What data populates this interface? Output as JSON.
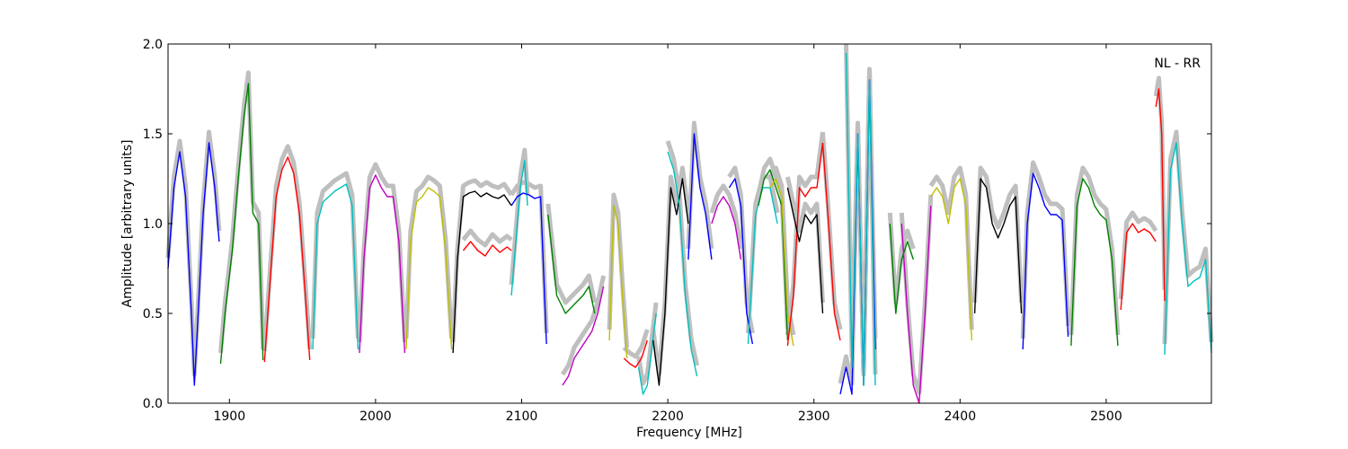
{
  "chart_data": {
    "type": "line",
    "title": "",
    "xlabel": "Frequency [MHz]",
    "ylabel": "Amplitude [arbitrary units]",
    "annotation": "NL - RR",
    "xlim": [
      1858,
      2572
    ],
    "ylim": [
      0.0,
      2.0
    ],
    "x_ticks": [
      1900,
      2000,
      2100,
      2200,
      2300,
      2400,
      2500
    ],
    "x_tick_labels": [
      "1900",
      "2000",
      "2100",
      "2200",
      "2300",
      "2400",
      "2500"
    ],
    "y_ticks": [
      0.0,
      0.5,
      1.0,
      1.5,
      2.0
    ],
    "y_tick_labels": [
      "0.0",
      "0.5",
      "1.0",
      "1.5",
      "2.0"
    ],
    "grid": false,
    "reference_color": "#bfbfbf",
    "segments": [
      {
        "color": "#0000ff",
        "x": [
          1858,
          1862,
          1866,
          1870,
          1874,
          1876,
          1878,
          1882,
          1886,
          1890,
          1893
        ],
        "y": [
          0.75,
          1.2,
          1.4,
          1.15,
          0.5,
          0.1,
          0.4,
          1.05,
          1.45,
          1.2,
          0.9
        ]
      },
      {
        "color": "#008000",
        "x": [
          1894,
          1897,
          1902,
          1906,
          1910,
          1913,
          1916,
          1920,
          1922,
          1923
        ],
        "y": [
          0.22,
          0.5,
          0.85,
          1.25,
          1.6,
          1.78,
          1.06,
          1.0,
          0.5,
          0.24
        ]
      },
      {
        "color": "#ff0000",
        "x": [
          1924,
          1928,
          1932,
          1936,
          1940,
          1944,
          1948,
          1952,
          1955
        ],
        "y": [
          0.23,
          0.7,
          1.15,
          1.3,
          1.37,
          1.28,
          1.05,
          0.6,
          0.24
        ]
      },
      {
        "color": "#00bfbf",
        "x": [
          1957,
          1960,
          1964,
          1968,
          1972,
          1976,
          1980,
          1984,
          1988
        ],
        "y": [
          0.3,
          1.0,
          1.12,
          1.15,
          1.18,
          1.2,
          1.22,
          1.1,
          0.3
        ]
      },
      {
        "color": "#bf00bf",
        "x": [
          1989,
          1992,
          1996,
          2000,
          2004,
          2008,
          2012,
          2016,
          2020
        ],
        "y": [
          0.28,
          0.8,
          1.2,
          1.27,
          1.2,
          1.15,
          1.15,
          0.9,
          0.28
        ]
      },
      {
        "color": "#bfbf00",
        "x": [
          2021,
          2024,
          2028,
          2032,
          2036,
          2040,
          2044,
          2048,
          2052
        ],
        "y": [
          0.3,
          0.9,
          1.12,
          1.15,
          1.2,
          1.18,
          1.15,
          0.85,
          0.3
        ]
      },
      {
        "color": "#000000",
        "x": [
          2053,
          2056,
          2060,
          2064,
          2068,
          2072,
          2076,
          2080,
          2084,
          2088,
          2093
        ],
        "y": [
          0.28,
          0.8,
          1.15,
          1.17,
          1.18,
          1.15,
          1.17,
          1.15,
          1.14,
          1.16,
          1.1
        ]
      },
      {
        "color": "#ff0000",
        "x": [
          2060,
          2065,
          2070,
          2075,
          2080,
          2085,
          2090,
          2093
        ],
        "y": [
          0.85,
          0.9,
          0.85,
          0.82,
          0.88,
          0.84,
          0.87,
          0.85
        ]
      },
      {
        "color": "#00bfbf",
        "x": [
          2093,
          2096,
          2099,
          2102,
          2104
        ],
        "y": [
          0.6,
          0.9,
          1.2,
          1.35,
          1.1
        ]
      },
      {
        "color": "#0000ff",
        "x": [
          2093,
          2097,
          2101,
          2105,
          2109,
          2113,
          2117
        ],
        "y": [
          1.1,
          1.15,
          1.17,
          1.16,
          1.14,
          1.15,
          0.33
        ]
      },
      {
        "color": "#008000",
        "x": [
          2118,
          2124,
          2130,
          2136,
          2142,
          2146,
          2150
        ],
        "y": [
          1.05,
          0.6,
          0.5,
          0.55,
          0.6,
          0.65,
          0.5
        ]
      },
      {
        "color": "#bf00bf",
        "x": [
          2128,
          2132,
          2136,
          2140,
          2144,
          2148,
          2152,
          2156
        ],
        "y": [
          0.1,
          0.15,
          0.25,
          0.3,
          0.35,
          0.4,
          0.5,
          0.65
        ]
      },
      {
        "color": "#bfbf00",
        "x": [
          2160,
          2163,
          2166,
          2169,
          2172
        ],
        "y": [
          0.35,
          1.1,
          1.0,
          0.6,
          0.25
        ]
      },
      {
        "color": "#ff0000",
        "x": [
          2170,
          2174,
          2178,
          2182,
          2186
        ],
        "y": [
          0.25,
          0.22,
          0.2,
          0.25,
          0.35
        ]
      },
      {
        "color": "#00bfbf",
        "x": [
          2180,
          2183,
          2186,
          2189,
          2192
        ],
        "y": [
          0.2,
          0.05,
          0.1,
          0.3,
          0.5
        ]
      },
      {
        "color": "#000000",
        "x": [
          2190,
          2194,
          2198,
          2202,
          2206,
          2210,
          2214
        ],
        "y": [
          0.35,
          0.1,
          0.5,
          1.2,
          1.05,
          1.25,
          1.0
        ]
      },
      {
        "color": "#00bfbf",
        "x": [
          2200,
          2204,
          2208,
          2212,
          2216,
          2220
        ],
        "y": [
          1.4,
          1.3,
          1.1,
          0.6,
          0.3,
          0.15
        ]
      },
      {
        "color": "#0000ff",
        "x": [
          2214,
          2218,
          2222,
          2226,
          2230
        ],
        "y": [
          0.8,
          1.5,
          1.2,
          1.05,
          0.8
        ]
      },
      {
        "color": "#bf00bf",
        "x": [
          2230,
          2234,
          2238,
          2242,
          2246,
          2250
        ],
        "y": [
          1.0,
          1.1,
          1.15,
          1.1,
          1.0,
          0.8
        ]
      },
      {
        "color": "#0000ff",
        "x": [
          2242,
          2246,
          2250,
          2254,
          2258
        ],
        "y": [
          1.2,
          1.25,
          1.1,
          0.5,
          0.33
        ]
      },
      {
        "color": "#00bfbf",
        "x": [
          2255,
          2260,
          2265,
          2270,
          2275
        ],
        "y": [
          0.33,
          1.05,
          1.2,
          1.2,
          1.0
        ]
      },
      {
        "color": "#008000",
        "x": [
          2262,
          2266,
          2270,
          2274,
          2278,
          2282
        ],
        "y": [
          1.1,
          1.25,
          1.3,
          1.2,
          1.1,
          0.35
        ]
      },
      {
        "color": "#bfbf00",
        "x": [
          2270,
          2274,
          2278,
          2282,
          2286
        ],
        "y": [
          1.2,
          1.25,
          1.15,
          0.5,
          0.32
        ]
      },
      {
        "color": "#ff0000",
        "x": [
          2282,
          2286,
          2290,
          2294,
          2298,
          2302,
          2306
        ],
        "y": [
          0.32,
          0.6,
          1.2,
          1.15,
          1.2,
          1.2,
          1.45
        ]
      },
      {
        "color": "#000000",
        "x": [
          2282,
          2286,
          2290,
          2294,
          2298,
          2302,
          2306
        ],
        "y": [
          1.2,
          1.05,
          0.9,
          1.05,
          1.0,
          1.05,
          0.5
        ]
      },
      {
        "color": "#ff0000",
        "x": [
          2306,
          2310,
          2314,
          2318
        ],
        "y": [
          1.45,
          1.0,
          0.5,
          0.35
        ]
      },
      {
        "color": "#0000ff",
        "x": [
          2318,
          2322,
          2326,
          2330,
          2334,
          2338,
          2342
        ],
        "y": [
          0.05,
          0.2,
          0.05,
          1.5,
          0.1,
          1.8,
          0.3
        ]
      },
      {
        "color": "#00bfbf",
        "x": [
          2322,
          2326,
          2330,
          2334,
          2338,
          2342
        ],
        "y": [
          1.95,
          0.2,
          1.5,
          0.1,
          1.8,
          0.1
        ]
      },
      {
        "color": "#008000",
        "x": [
          2352,
          2356,
          2360,
          2364,
          2368
        ],
        "y": [
          1.0,
          0.5,
          0.8,
          0.9,
          0.8
        ]
      },
      {
        "color": "#bf00bf",
        "x": [
          2360,
          2364,
          2368,
          2372,
          2376,
          2380
        ],
        "y": [
          1.0,
          0.5,
          0.1,
          0.0,
          0.5,
          1.1
        ]
      },
      {
        "color": "#bfbf00",
        "x": [
          2380,
          2384,
          2388,
          2392,
          2396,
          2400,
          2404,
          2408
        ],
        "y": [
          1.15,
          1.2,
          1.15,
          1.0,
          1.2,
          1.25,
          1.1,
          0.35
        ]
      },
      {
        "color": "#000000",
        "x": [
          2410,
          2414,
          2418,
          2422,
          2426,
          2430,
          2434,
          2438,
          2442
        ],
        "y": [
          0.5,
          1.25,
          1.2,
          1.0,
          0.92,
          1.0,
          1.1,
          1.15,
          0.5
        ]
      },
      {
        "color": "#0000ff",
        "x": [
          2443,
          2446,
          2450,
          2454,
          2458,
          2462,
          2466,
          2470,
          2474
        ],
        "y": [
          0.3,
          1.0,
          1.28,
          1.2,
          1.1,
          1.05,
          1.05,
          1.02,
          0.37
        ]
      },
      {
        "color": "#008000",
        "x": [
          2476,
          2480,
          2484,
          2488,
          2492,
          2496,
          2500,
          2504,
          2508
        ],
        "y": [
          0.32,
          1.1,
          1.25,
          1.2,
          1.1,
          1.05,
          1.02,
          0.8,
          0.32
        ]
      },
      {
        "color": "#ff0000",
        "x": [
          2510,
          2514,
          2518,
          2522,
          2526,
          2530,
          2534
        ],
        "y": [
          0.52,
          0.95,
          1.0,
          0.95,
          0.97,
          0.95,
          0.9
        ]
      },
      {
        "color": "#ff0000",
        "x": [
          2534,
          2536,
          2538,
          2540
        ],
        "y": [
          1.65,
          1.75,
          1.5,
          0.57
        ]
      },
      {
        "color": "#00bfbf",
        "x": [
          2540,
          2544,
          2548,
          2552,
          2556,
          2560,
          2564,
          2568,
          2572
        ],
        "y": [
          0.27,
          1.3,
          1.45,
          1.0,
          0.65,
          0.68,
          0.7,
          0.8,
          0.28
        ]
      }
    ]
  }
}
